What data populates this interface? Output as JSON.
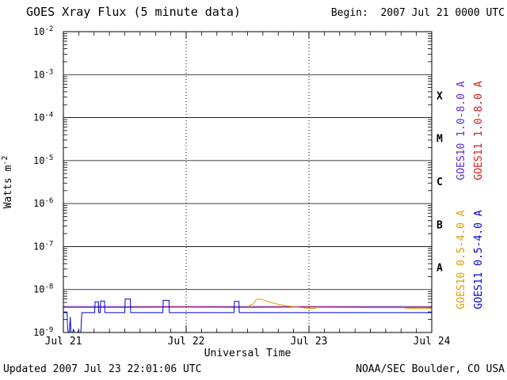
{
  "header": {
    "title": "GOES Xray Flux (5 minute data)",
    "begin_label": "Begin:  2007 Jul 21 0000 UTC"
  },
  "footer": {
    "updated": "Updated 2007 Jul 23 22:01:06 UTC",
    "source": "NOAA/SEC Boulder, CO USA"
  },
  "chart_data": {
    "type": "line",
    "title": "GOES Xray Flux (5 minute data)",
    "colors": {
      "axis": "#000000",
      "background": "#ffffff"
    },
    "x_axis": {
      "label": "Universal Time",
      "range_days": [
        0,
        3
      ],
      "minor_tick_hours": 3,
      "grid": "dotted-vertical-at-day-boundaries",
      "ticks": [
        {
          "label": "Jul 21",
          "t": 0
        },
        {
          "label": "Jul 22",
          "t": 1
        },
        {
          "label": "Jul 23",
          "t": 2
        },
        {
          "label": "Jul 24",
          "t": 3
        }
      ]
    },
    "y_axis": {
      "label_base": "Watts m",
      "label_exponent": "-2",
      "scale": "log",
      "range": [
        1e-09,
        0.01
      ],
      "tick_exponents": [
        -2,
        -3,
        -4,
        -5,
        -6,
        -7,
        -8,
        -9
      ],
      "grid": "solid-horizontal-at-decades"
    },
    "flare_classes": [
      {
        "label": "X",
        "log_center": -3.5
      },
      {
        "label": "M",
        "log_center": -4.5
      },
      {
        "label": "C",
        "log_center": -5.5
      },
      {
        "label": "B",
        "log_center": -6.5
      },
      {
        "label": "A",
        "log_center": -7.5
      }
    ],
    "legend_position": "right-rotated",
    "series": [
      {
        "id": "goes10-long",
        "name": "GOES10 1.0-8.0 A",
        "color": "#5a2bd0",
        "segments": [
          [
            [
              0.0,
              4e-09
            ],
            [
              3.0,
              4e-09
            ]
          ]
        ]
      },
      {
        "id": "goes11-long",
        "name": "GOES11 1.0-8.0 A",
        "color": "#d41a1a",
        "segments": [
          [
            [
              0.0,
              3.85e-09
            ],
            [
              0.5,
              3.85e-09
            ],
            [
              1.0,
              3.9e-09
            ],
            [
              1.5,
              3.85e-09
            ],
            [
              2.0,
              3.9e-09
            ],
            [
              2.5,
              3.85e-09
            ],
            [
              3.0,
              3.85e-09
            ]
          ]
        ]
      },
      {
        "id": "goes10-short",
        "name": "GOES10 0.5-4.0 A",
        "color": "#dd9f00",
        "segments": [
          [
            [
              1.505,
              3.9e-09
            ],
            [
              1.52,
              4.3e-09
            ],
            [
              1.545,
              4.6e-09
            ],
            [
              1.565,
              5.6e-09
            ],
            [
              1.585,
              6e-09
            ],
            [
              1.62,
              5.9e-09
            ],
            [
              1.65,
              5.4e-09
            ],
            [
              1.7,
              4.9e-09
            ],
            [
              1.75,
              4.5e-09
            ],
            [
              1.82,
              4.2e-09
            ],
            [
              1.9,
              3.9e-09
            ],
            [
              1.98,
              3.7e-09
            ],
            [
              2.06,
              3.6e-09
            ]
          ],
          [
            [
              2.78,
              3.6e-09
            ],
            [
              2.85,
              3.65e-09
            ],
            [
              2.92,
              3.6e-09
            ],
            [
              3.0,
              3.65e-09
            ]
          ]
        ]
      },
      {
        "id": "goes11-short",
        "name": "GOES11 0.5-4.0 A",
        "color": "#0000d6",
        "segments": [
          [
            [
              0.0,
              2.9e-09
            ],
            [
              0.03,
              2.9e-09
            ],
            [
              0.034,
              1.3e-09
            ],
            [
              0.042,
              9e-10
            ],
            [
              0.05,
              1.1e-09
            ],
            [
              0.056,
              2.3e-09
            ],
            [
              0.062,
              1e-09
            ],
            [
              0.072,
              9e-10
            ],
            [
              0.082,
              1.2e-09
            ],
            [
              0.092,
              9.5e-10
            ],
            [
              0.102,
              1e-09
            ],
            [
              0.112,
              9.5e-10
            ],
            [
              0.122,
              1.1e-09
            ],
            [
              0.132,
              9.5e-10
            ],
            [
              0.142,
              1.05e-09
            ],
            [
              0.15,
              2.9e-09
            ],
            [
              0.255,
              2.9e-09
            ],
            [
              0.258,
              5.2e-09
            ],
            [
              0.285,
              5.2e-09
            ],
            [
              0.288,
              2.9e-09
            ],
            [
              0.3,
              2.9e-09
            ],
            [
              0.303,
              5.4e-09
            ],
            [
              0.335,
              5.4e-09
            ],
            [
              0.338,
              2.9e-09
            ],
            [
              0.5,
              2.9e-09
            ],
            [
              0.503,
              6e-09
            ],
            [
              0.545,
              6e-09
            ],
            [
              0.548,
              2.9e-09
            ],
            [
              0.81,
              2.9e-09
            ],
            [
              0.813,
              5.6e-09
            ],
            [
              0.86,
              5.6e-09
            ],
            [
              0.863,
              2.9e-09
            ],
            [
              1.39,
              2.9e-09
            ],
            [
              1.393,
              5.3e-09
            ],
            [
              1.43,
              5.3e-09
            ],
            [
              1.433,
              2.9e-09
            ],
            [
              3.0,
              2.9e-09
            ]
          ]
        ]
      }
    ]
  }
}
